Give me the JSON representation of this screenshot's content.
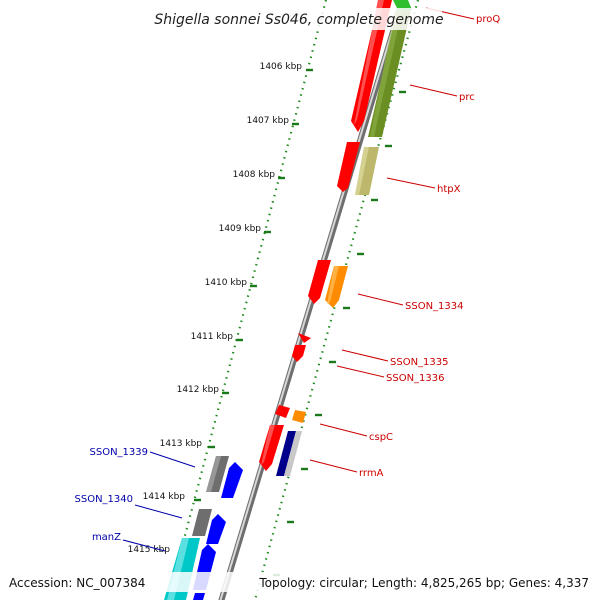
{
  "title": "Shigella sonnei Ss046, complete genome",
  "footer": {
    "accession": "Accession: NC_007384",
    "summary": "Topology: circular; Length: 4,825,265 bp; Genes: 4,337"
  },
  "colors": {
    "backbone": "#9a9a9a",
    "ruler_dots": "#228b22",
    "tick": "#1a7a1a",
    "label_forward": "#cc0000",
    "label_reverse": "#0000aa"
  },
  "ticks": [
    "1406 kbp",
    "1407 kbp",
    "1408 kbp",
    "1409 kbp",
    "1410 kbp",
    "1411 kbp",
    "1412 kbp",
    "1413 kbp",
    "1414 kbp",
    "1415 kbp"
  ],
  "forward_labels": [
    "proQ",
    "prc",
    "htpX",
    "SSON_1334",
    "SSON_1335",
    "SSON_1336",
    "cspC",
    "rrmA"
  ],
  "reverse_labels": [
    "SSON_1339",
    "SSON_1340",
    "manZ"
  ]
}
